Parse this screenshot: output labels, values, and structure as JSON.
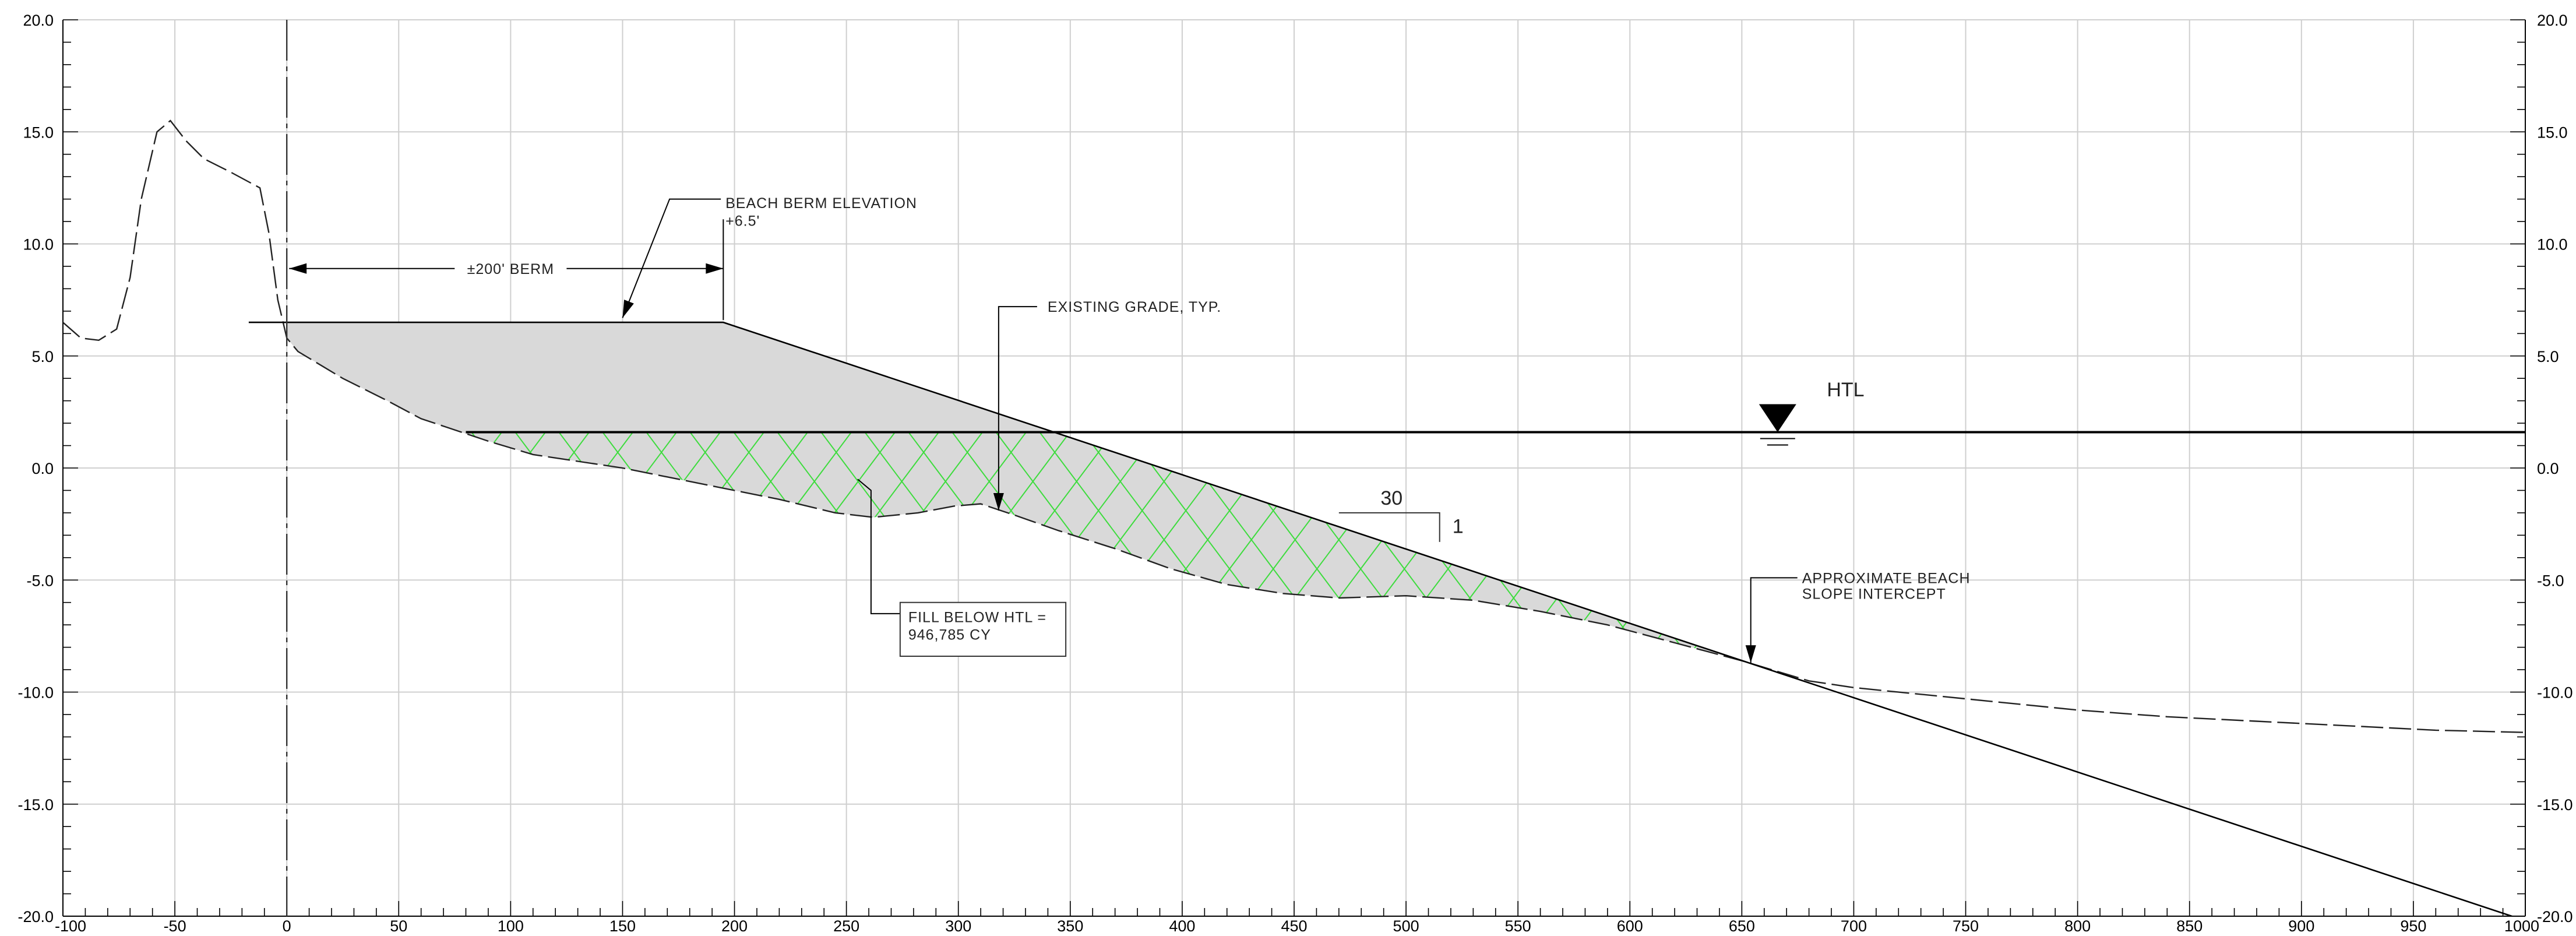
{
  "chart_data": {
    "type": "cross-section",
    "xlim": [
      -100,
      1000
    ],
    "ylim": [
      -20,
      20
    ],
    "x_ticks": [
      "-100",
      "-50",
      "0",
      "50",
      "100",
      "150",
      "200",
      "250",
      "300",
      "350",
      "400",
      "450",
      "500",
      "550",
      "600",
      "650",
      "700",
      "750",
      "800",
      "850",
      "900",
      "950",
      "1000"
    ],
    "y_ticks": [
      "-20.0",
      "-15.0",
      "-10.0",
      "-5.0",
      "0.0",
      "5.0",
      "10.0",
      "15.0",
      "20.0"
    ],
    "existing_grade": [
      [
        -100,
        6.5
      ],
      [
        -92,
        5.8
      ],
      [
        -84,
        5.7
      ],
      [
        -76,
        6.2
      ],
      [
        -70,
        8.5
      ],
      [
        -65,
        12.0
      ],
      [
        -58,
        15.0
      ],
      [
        -52,
        15.5
      ],
      [
        -45,
        14.6
      ],
      [
        -37,
        13.8
      ],
      [
        -25,
        13.2
      ],
      [
        -12,
        12.5
      ],
      [
        -8,
        10.5
      ],
      [
        -4,
        7.5
      ],
      [
        0,
        5.8
      ],
      [
        5,
        5.2
      ],
      [
        25,
        4.0
      ],
      [
        45,
        3.0
      ],
      [
        60,
        2.2
      ],
      [
        75,
        1.7
      ],
      [
        90,
        1.2
      ],
      [
        110,
        0.6
      ],
      [
        130,
        0.3
      ],
      [
        150,
        0.0
      ],
      [
        175,
        -0.5
      ],
      [
        200,
        -1.0
      ],
      [
        220,
        -1.4
      ],
      [
        245,
        -2.0
      ],
      [
        262,
        -2.2
      ],
      [
        282,
        -2.0
      ],
      [
        298,
        -1.7
      ],
      [
        310,
        -1.6
      ],
      [
        325,
        -2.1
      ],
      [
        345,
        -2.8
      ],
      [
        370,
        -3.6
      ],
      [
        395,
        -4.5
      ],
      [
        420,
        -5.2
      ],
      [
        445,
        -5.6
      ],
      [
        470,
        -5.8
      ],
      [
        500,
        -5.7
      ],
      [
        530,
        -5.9
      ],
      [
        560,
        -6.4
      ],
      [
        590,
        -7.0
      ],
      [
        620,
        -7.8
      ],
      [
        650,
        -8.6
      ],
      [
        680,
        -9.5
      ],
      [
        700,
        -9.8
      ],
      [
        730,
        -10.1
      ],
      [
        760,
        -10.4
      ],
      [
        800,
        -10.8
      ],
      [
        840,
        -11.1
      ],
      [
        880,
        -11.3
      ],
      [
        920,
        -11.5
      ],
      [
        960,
        -11.7
      ],
      [
        1000,
        -11.8
      ]
    ],
    "design_profile": [
      [
        -17,
        6.5
      ],
      [
        195,
        6.5
      ],
      [
        1000,
        -20.2
      ]
    ],
    "htl_elevation": 1.6,
    "htl_line_from_x": 80,
    "baseline_x": 0,
    "labels": {
      "berm_dimension": "±200' BERM",
      "berm_elevation_line1": "BEACH BERM ELEVATION",
      "berm_elevation_line2": "+6.5'",
      "existing_grade": "EXISTING GRADE, TYP.",
      "htl": "HTL",
      "slope_run": "30",
      "slope_rise": "1",
      "intercept_line1": "APPROXIMATE BEACH",
      "intercept_line2": "SLOPE INTERCEPT",
      "fill_line1": "FILL BELOW HTL =",
      "fill_line2": "946,785 CY"
    },
    "colors": {
      "fill_gray": "#d9d9d9",
      "hatch_green": "#3ddc3d",
      "grid": "#cfcfcf",
      "line": "#000000"
    }
  }
}
